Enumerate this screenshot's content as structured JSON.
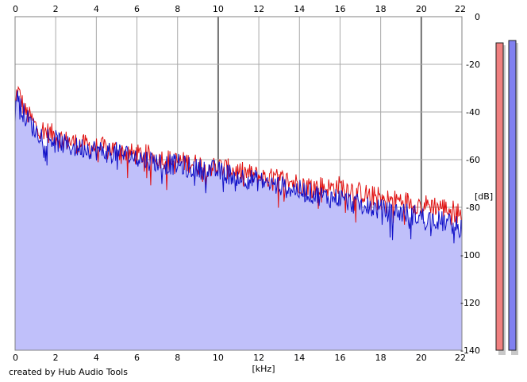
{
  "chart_data": {
    "type": "area",
    "title": "",
    "xlabel": "[kHz]",
    "ylabel": "[dB]",
    "xlim": [
      0,
      22
    ],
    "ylim": [
      -140,
      0
    ],
    "x_ticks": [
      0,
      2,
      4,
      6,
      8,
      10,
      12,
      14,
      16,
      18,
      20,
      22
    ],
    "y_ticks": [
      0,
      -20,
      -40,
      -60,
      -80,
      -100,
      -120,
      -140
    ],
    "grid": true,
    "legend": "none",
    "series": [
      {
        "color": "#e01010",
        "x": [
          0,
          0.1,
          0.3,
          0.5,
          0.8,
          1.0,
          1.5,
          2.0,
          2.5,
          3.0,
          3.5,
          4.0,
          4.5,
          5.0,
          5.5,
          6.0,
          6.5,
          7.0,
          7.5,
          8.0,
          8.5,
          9.0,
          9.5,
          10.0,
          10.5,
          11.0,
          11.5,
          12.0,
          12.5,
          13.0,
          13.5,
          14.0,
          14.5,
          15.0,
          15.5,
          16.0,
          16.5,
          17.0,
          17.5,
          18.0,
          18.5,
          19.0,
          19.5,
          20.0,
          20.5,
          21.0,
          21.5,
          22.0
        ],
        "values": [
          -40,
          -30,
          -35,
          -40,
          -43,
          -46,
          -48,
          -50,
          -52,
          -53,
          -54,
          -55,
          -55,
          -56,
          -57,
          -58,
          -58,
          -59,
          -60,
          -61,
          -61,
          -62,
          -63,
          -63,
          -64,
          -65,
          -66,
          -67,
          -68,
          -68,
          -69,
          -70,
          -71,
          -71,
          -72,
          -71,
          -72,
          -74,
          -75,
          -76,
          -77,
          -77,
          -78,
          -79,
          -79,
          -80,
          -81,
          -83
        ]
      },
      {
        "color": "#1010c8",
        "x": [
          0,
          0.1,
          0.3,
          0.5,
          0.8,
          1.0,
          1.5,
          2.0,
          2.5,
          3.0,
          3.5,
          4.0,
          4.5,
          5.0,
          5.5,
          6.0,
          6.5,
          7.0,
          7.5,
          8.0,
          8.5,
          9.0,
          9.5,
          10.0,
          10.5,
          11.0,
          11.5,
          12.0,
          12.5,
          13.0,
          13.5,
          14.0,
          14.5,
          15.0,
          15.5,
          16.0,
          16.5,
          17.0,
          17.5,
          18.0,
          18.5,
          19.0,
          19.5,
          20.0,
          20.5,
          21.0,
          21.5,
          22.0
        ],
        "values": [
          -45,
          -30,
          -38,
          -42,
          -45,
          -48,
          -50,
          -52,
          -54,
          -55,
          -55,
          -56,
          -57,
          -57,
          -58,
          -59,
          -60,
          -61,
          -62,
          -62,
          -63,
          -64,
          -64,
          -65,
          -66,
          -67,
          -68,
          -69,
          -70,
          -71,
          -72,
          -73,
          -74,
          -75,
          -76,
          -76,
          -78,
          -79,
          -80,
          -81,
          -82,
          -82,
          -83,
          -84,
          -85,
          -86,
          -87,
          -89
        ]
      }
    ],
    "level_meters": [
      {
        "color": "#f08080",
        "level_db": -11
      },
      {
        "color": "#8080f0",
        "level_db": -10
      }
    ]
  },
  "credit": "created by Hub Audio Tools"
}
